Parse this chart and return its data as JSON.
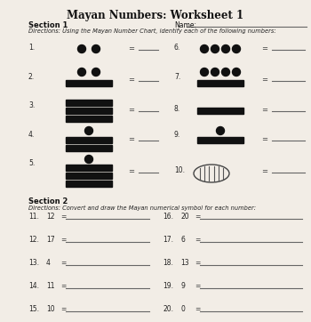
{
  "title": "Mayan Numbers: Worksheet 1",
  "section1_label": "Section 1",
  "name_label": "Name:",
  "dir1": "Directions: Using the Mayan Number Chart, identify each of the following numbers:",
  "section2_label": "Section 2",
  "dir2": "Directions: Convert and draw the Mayan numerical symbol for each number:",
  "bg_color": "#f2ede6",
  "bar_color": "#111111",
  "dot_color": "#111111",
  "line_color": "#666666",
  "items_s2": [
    {
      "num": "11.",
      "val": "12"
    },
    {
      "num": "12.",
      "val": "17"
    },
    {
      "num": "13.",
      "val": "4"
    },
    {
      "num": "14.",
      "val": "11"
    },
    {
      "num": "15.",
      "val": "10"
    },
    {
      "num": "16.",
      "val": "20"
    },
    {
      "num": "17.",
      "val": "6"
    },
    {
      "num": "18.",
      "val": "13"
    },
    {
      "num": "19.",
      "val": "9"
    },
    {
      "num": "20.",
      "val": "0"
    }
  ]
}
